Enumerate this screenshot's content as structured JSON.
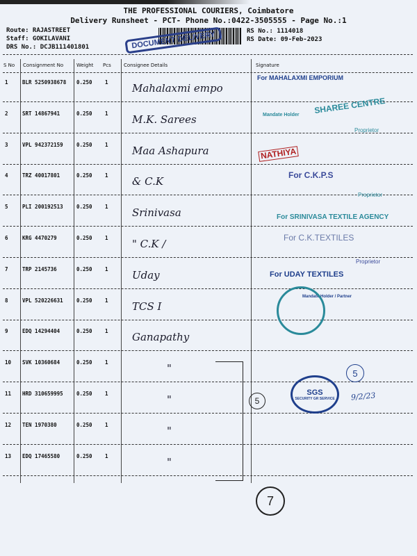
{
  "header": {
    "title": "THE PROFESSIONAL COURIERS, Coimbatore",
    "subtitle": "Delivery Runsheet - PCT- Phone No.:0422-3505555 - Page No.:1",
    "route": "Route: RAJASTREET",
    "staff": "Staff: GOKILAVANI",
    "drs": "DRS No.: DCJB111401801",
    "rs_no": "RS No.: 1114018",
    "rs_date": "RS Date: 09-Feb-2023"
  },
  "columns": {
    "sno": "S No",
    "consignment": "Consignment No",
    "weight": "Weight",
    "pcs": "Pcs",
    "consignee": "Consignee Details",
    "signature": "Signature"
  },
  "rows": [
    {
      "sno": "1",
      "cn": "BLR 5250938678",
      "weight": "0.250",
      "pcs": "1",
      "consignee": "Mahalaxmi empo"
    },
    {
      "sno": "2",
      "cn": "SRT 14867941",
      "weight": "0.250",
      "pcs": "1",
      "consignee": "M.K. Sarees"
    },
    {
      "sno": "3",
      "cn": "VPL 942372159",
      "weight": "0.250",
      "pcs": "1",
      "consignee": "Maa Ashapura"
    },
    {
      "sno": "4",
      "cn": "TRZ 40017801",
      "weight": "0.250",
      "pcs": "1",
      "consignee": "& C.K"
    },
    {
      "sno": "5",
      "cn": "PLI 200192513",
      "weight": "0.250",
      "pcs": "1",
      "consignee": "Srinivasa"
    },
    {
      "sno": "6",
      "cn": "KRG 4470279",
      "weight": "0.250",
      "pcs": "1",
      "consignee": "\" C.K /"
    },
    {
      "sno": "7",
      "cn": "TRP 2145736",
      "weight": "0.250",
      "pcs": "1",
      "consignee": "Uday"
    },
    {
      "sno": "8",
      "cn": "VPL 520226631",
      "weight": "0.250",
      "pcs": "1",
      "consignee": "TCS I"
    },
    {
      "sno": "9",
      "cn": "EDQ 14294404",
      "weight": "0.250",
      "pcs": "1",
      "consignee": "Ganapathy"
    },
    {
      "sno": "10",
      "cn": "SVK 10360684",
      "weight": "0.250",
      "pcs": "1",
      "consignee": "\""
    },
    {
      "sno": "11",
      "cn": "HRD 310659995",
      "weight": "0.250",
      "pcs": "1",
      "consignee": "\""
    },
    {
      "sno": "12",
      "cn": "TEN 1970380",
      "weight": "0.250",
      "pcs": "1",
      "consignee": "\""
    },
    {
      "sno": "13",
      "cn": "EDQ 17465580",
      "weight": "0.250",
      "pcs": "1",
      "consignee": "\""
    }
  ],
  "stamps": {
    "document": "DOCUMENT DELIVERY",
    "mahalaxmi": "For MAHALAXMI EMPORIUM",
    "sharee": "SHAREE CENTRE",
    "mandate": "Mandate Holder",
    "proprietor": "Proprietor",
    "nathiya": "NATHIYA",
    "ck": "For C.K.P.S",
    "srinivasa": "For SRINIVASA TEXTILE AGENCY",
    "ck2": "For C.K.TEXTILES",
    "uday": "For UDAY TEXTILES",
    "mandate2": "Mandate Holder / Partner",
    "sgs": "SGS",
    "sgs_sub": "SECURITY GR SERVICE",
    "circle5": "5",
    "circle7": "7",
    "bracket5": "5",
    "sig_date": "9/2/23"
  }
}
